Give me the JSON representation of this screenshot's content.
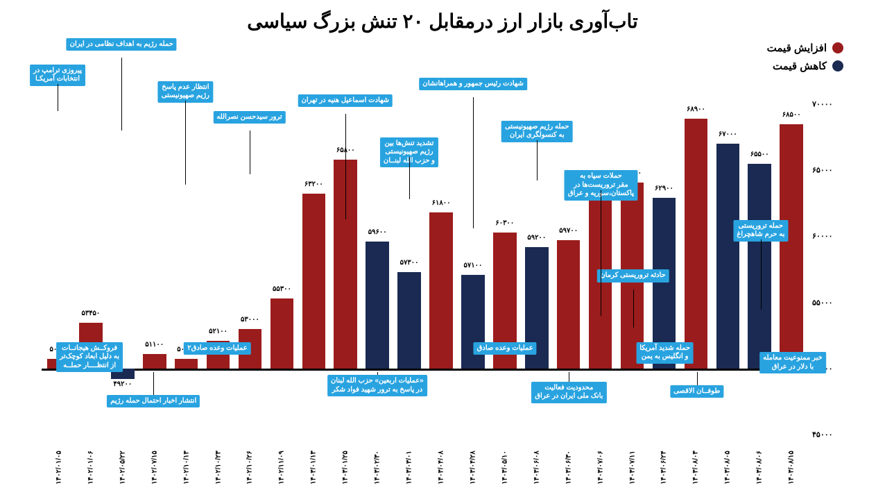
{
  "title": "تاب‌آوری بازار ارز درمقابل ۲۰ تنش بزرگ سیاسی",
  "title_fontsize": 28,
  "legend": {
    "increase": {
      "label": "افزایش قیمت",
      "color": "#9b1c1c"
    },
    "decrease": {
      "label": "کاهش قیمت",
      "color": "#1a2a52"
    }
  },
  "chart": {
    "type": "bar",
    "baseline": 50000,
    "ylim": [
      45000,
      70000
    ],
    "yticks": [
      45000,
      50000,
      55000,
      60000,
      65000,
      70000
    ],
    "ytick_labels": [
      "۴۵۰۰۰",
      "۵۰۰۰۰",
      "۵۵۰۰۰",
      "۶۰۰۰۰",
      "۶۵۰۰۰",
      "۷۰۰۰۰"
    ],
    "colors": {
      "up": "#9b1c1c",
      "down": "#1a2a52"
    },
    "background_color": "#ffffff",
    "bars": [
      {
        "date": "۱۴۰۲/۰۱/۰۵",
        "value": 50700,
        "label": "۵۰۷۰۰",
        "dir": "up"
      },
      {
        "date": "۱۴۰۲/۰۱/۰۶",
        "value": 53450,
        "label": "۵۳۴۵۰",
        "dir": "up"
      },
      {
        "date": "۱۴۰۲/۰۵/۲۲",
        "value": 49200,
        "label": "۴۹۲۰۰",
        "dir": "down"
      },
      {
        "date": "۱۴۰۲/۰۷/۱۵",
        "value": 51100,
        "label": "۵۱۱۰۰",
        "dir": "up"
      },
      {
        "date": "۱۴۰۲/۱۰/۱۳",
        "value": 50700,
        "label": "۵۰۷۰۰",
        "dir": "up"
      },
      {
        "date": "۱۴۰۲/۱۰/۲۳",
        "value": 52100,
        "label": "۵۲۱۰۰",
        "dir": "up"
      },
      {
        "date": "۱۴۰۲/۱۰/۲۶",
        "value": 53000,
        "label": "۵۳۰۰۰",
        "dir": "up"
      },
      {
        "date": "۱۴۰۲/۱۱/۰۹",
        "value": 55300,
        "label": "۵۵۳۰۰",
        "dir": "up"
      },
      {
        "date": "۱۴۰۳/۰۱/۱۳",
        "value": 63200,
        "label": "۶۳۲۰۰",
        "dir": "up"
      },
      {
        "date": "۱۴۰۳/۰۱/۲۵",
        "value": 65800,
        "label": "۶۵۸۰۰",
        "dir": "up"
      },
      {
        "date": "۱۴۰۳/۰۲/۳۰",
        "value": 59600,
        "label": "۵۹۶۰۰",
        "dir": "down"
      },
      {
        "date": "۱۴۰۳/۰۳/۰۱",
        "value": 57300,
        "label": "۵۷۳۰۰",
        "dir": "down"
      },
      {
        "date": "۱۴۰۳/۰۴/۰۸",
        "value": 61800,
        "label": "۶۱۸۰۰",
        "dir": "up"
      },
      {
        "date": "۱۴۰۳/۰۴/۲۸",
        "value": 57100,
        "label": "۵۷۱۰۰",
        "dir": "down"
      },
      {
        "date": "۱۴۰۳/۰۵/۱۰",
        "value": 60300,
        "label": "۶۰۳۰۰",
        "dir": "up"
      },
      {
        "date": "۱۴۰۳/۰۶/۰۸",
        "value": 59200,
        "label": "۵۹۲۰۰",
        "dir": "down"
      },
      {
        "date": "۱۴۰۳/۰۶/۳۰",
        "value": 59700,
        "label": "۵۹۷۰۰",
        "dir": "up"
      },
      {
        "date": "۱۴۰۳/۰۷/۰۶",
        "value": 63700,
        "label": "۶۳۷۰۰",
        "dir": "up"
      },
      {
        "date": "۱۴۰۳/۰۷/۱۱",
        "value": 64050,
        "label": "۶۴۰۵۰",
        "dir": "up"
      },
      {
        "date": "۱۴۰۳/۰۶/۲۴",
        "value": 62900,
        "label": "۶۲۹۰۰",
        "dir": "down"
      },
      {
        "date": "۱۴۰۳/۰۸/۰۳",
        "value": 68900,
        "label": "۶۸۹۰۰",
        "dir": "up"
      },
      {
        "date": "۱۴۰۳/۰۸/۰۵",
        "value": 67000,
        "label": "۶۷۰۰۰",
        "dir": "down"
      },
      {
        "date": "۱۴۰۳/۰۸/۰۶",
        "value": 65500,
        "label": "۶۵۵۰۰",
        "dir": "down"
      },
      {
        "date": "۱۴۰۳/۰۸/۱۵",
        "value": 68500,
        "label": "۶۸۵۰۰",
        "dir": "up"
      }
    ],
    "callouts_top": [
      {
        "bar": 1,
        "text": "حمله تروریستی\nبه حرم شاهچراغ",
        "y": 35
      },
      {
        "bar": 5,
        "text": "حادثه تروریستی کرمان",
        "y": 50
      },
      {
        "bar": 6,
        "text": "حملات سپاه به\nمقر تروریست‌ها در\nپاکستان،سوریه و عراق",
        "y": 20
      },
      {
        "bar": 8,
        "text": "حمله رژیم صهیونیستی\nبه کنسولگری ایران",
        "y": 5
      },
      {
        "bar": 10,
        "text": "شهادت رئیس جمهور و همراهانشان",
        "y": -8
      },
      {
        "bar": 12,
        "text": "تشدید تنش‌ها بین\nرژیم صهیونیستی\nو حزب الله لبنــان",
        "y": 10
      },
      {
        "bar": 14,
        "text": "شهادت اسماعیل هنیه در تهران",
        "y": -3
      },
      {
        "bar": 17,
        "text": "ترور سیدحسن نصرالله",
        "y": 2
      },
      {
        "bar": 19,
        "text": "انتظار عدم پاسخ\nرژیم صهیونیستی",
        "y": -7
      },
      {
        "bar": 21,
        "text": "حمله رژیم به اهداف نظامی در ایران",
        "y": -20
      },
      {
        "bar": 23,
        "text": "پیروزی ترامپ در\nانتخابات آمریکـا",
        "y": -12
      }
    ],
    "callouts_bottom": [
      {
        "bar": 0,
        "text": "خبر ممنوعیت معامله\nبا دلار در عراق",
        "y": 75
      },
      {
        "bar": 3,
        "text": "طوفــان الاقصی",
        "y": 85
      },
      {
        "bar": 4,
        "text": "حمله شدید آمریکا\nو انگلیس به یمن",
        "y": 72
      },
      {
        "bar": 7,
        "text": "محدودیت فعالیت\nبانک ملی ایران در عراق",
        "y": 84
      },
      {
        "bar": 9,
        "text": "عملیات وعده صادق",
        "y": 72
      },
      {
        "bar": 13,
        "text": "«عملیات اربعین» حزب الله لبنان\nدر پاسخ به ترور شهید فواد شکر",
        "y": 82
      },
      {
        "bar": 18,
        "text": "عملیات وعده صادق۲",
        "y": 72
      },
      {
        "bar": 20,
        "text": "انتشار اخبار احتمال حمله رژیم",
        "y": 88
      },
      {
        "bar": 22,
        "text": "فروکــش هیجانــات\nبه دلیل ابعاد کوچک‌تر\nاز انتظــــار حملــه",
        "y": 72
      }
    ]
  }
}
